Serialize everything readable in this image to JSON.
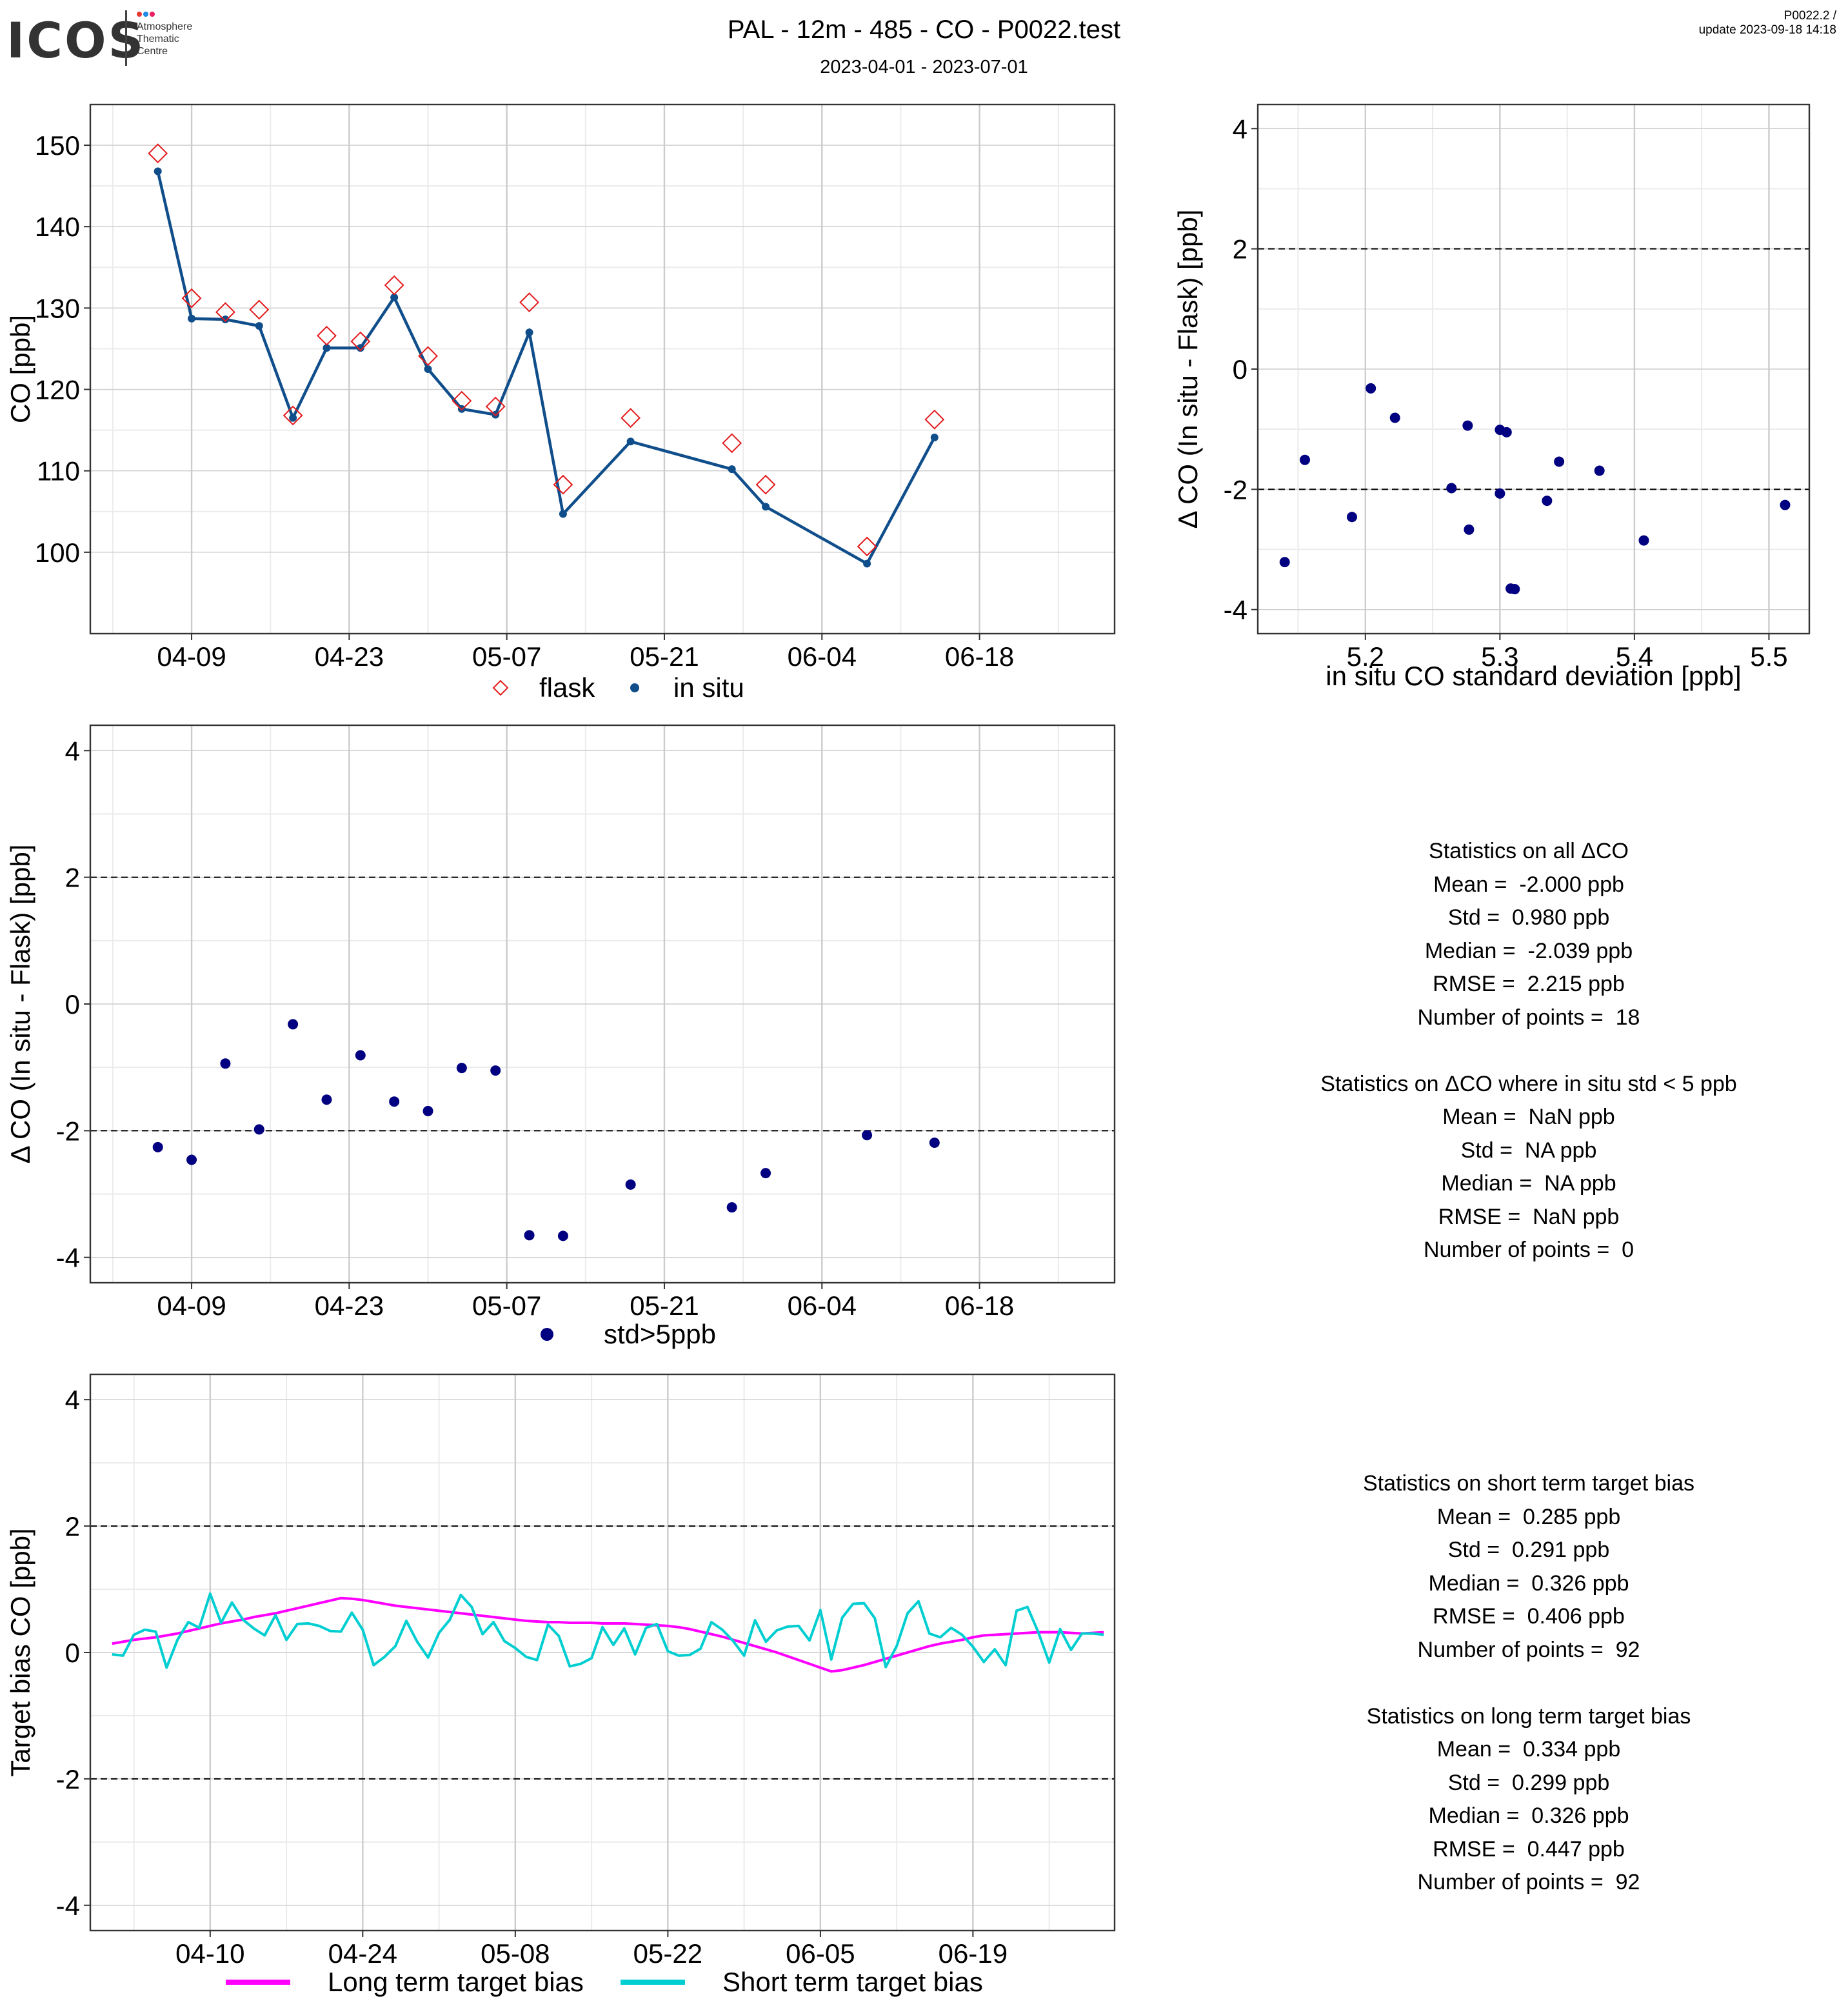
{
  "header": {
    "logo_text": "ICOS",
    "logo_subtitle": "Atmosphere\nThematic\nCentre",
    "title": "PAL - 12m - 485 - CO - P0022.test",
    "subtitle": "2023-04-01 - 2023-07-01",
    "version": "P0022.2 /",
    "update": "update  2023-09-18 14:18"
  },
  "chart_data": [
    {
      "type": "line",
      "ylabel": "CO [ppb]",
      "ylim": [
        90,
        155
      ],
      "yticks": [
        100,
        110,
        120,
        130,
        140,
        150
      ],
      "xlim": [
        "2023-03-31",
        "2023-06-30"
      ],
      "xtick_dates": [
        "2023-04-09",
        "2023-04-23",
        "2023-05-07",
        "2023-05-21",
        "2023-06-04",
        "2023-06-18"
      ],
      "xtick_labels": [
        "04-09",
        "04-23",
        "05-07",
        "05-21",
        "06-04",
        "06-18"
      ],
      "grid": true,
      "legend_position": "bottom",
      "series": [
        {
          "name": "flask",
          "marker": "diamond-open",
          "color": "#e31a1c",
          "x": [
            "2023-04-06",
            "2023-04-09",
            "2023-04-12",
            "2023-04-15",
            "2023-04-18",
            "2023-04-21",
            "2023-04-24",
            "2023-04-27",
            "2023-04-30",
            "2023-05-03",
            "2023-05-06",
            "2023-05-09",
            "2023-05-12",
            "2023-05-18",
            "2023-05-27",
            "2023-05-30",
            "2023-06-08",
            "2023-06-14"
          ],
          "y": [
            149.0,
            131.2,
            129.5,
            129.8,
            116.8,
            126.6,
            125.9,
            132.8,
            124.1,
            118.6,
            117.9,
            130.7,
            108.3,
            116.5,
            113.4,
            108.3,
            100.7,
            116.3
          ]
        },
        {
          "name": "in situ",
          "marker": "dot-line",
          "color": "#104e8b",
          "x": [
            "2023-04-06",
            "2023-04-09",
            "2023-04-12",
            "2023-04-15",
            "2023-04-18",
            "2023-04-21",
            "2023-04-24",
            "2023-04-27",
            "2023-04-30",
            "2023-05-03",
            "2023-05-06",
            "2023-05-09",
            "2023-05-12",
            "2023-05-18",
            "2023-05-27",
            "2023-05-30",
            "2023-06-08",
            "2023-06-14"
          ],
          "y": [
            146.8,
            128.7,
            128.6,
            127.8,
            116.5,
            125.1,
            125.1,
            131.3,
            122.5,
            117.6,
            116.9,
            127.0,
            104.7,
            113.6,
            110.2,
            105.6,
            98.6,
            114.1
          ]
        }
      ]
    },
    {
      "type": "scatter",
      "xlabel": "in situ CO standard deviation [ppb]",
      "ylabel": "Δ CO (In situ - Flask) [ppb]",
      "xlim": [
        5.12,
        5.53
      ],
      "ylim": [
        -4.4,
        4.4
      ],
      "xticks": [
        5.2,
        5.3,
        5.4,
        5.5
      ],
      "yticks": [
        -4,
        -2,
        0,
        2,
        4
      ],
      "hlines": [
        -2,
        2
      ],
      "grid": true,
      "series": [
        {
          "color": "#000080",
          "x": [
            5.14,
            5.155,
            5.19,
            5.204,
            5.222,
            5.264,
            5.277,
            5.276,
            5.3,
            5.3,
            5.305,
            5.308,
            5.311,
            5.335,
            5.344,
            5.374,
            5.407,
            5.512
          ],
          "y": [
            -3.21,
            -1.51,
            -2.46,
            -0.32,
            -0.81,
            -1.98,
            -2.67,
            -0.94,
            -1.01,
            -2.07,
            -1.05,
            -3.65,
            -3.66,
            -2.19,
            -1.54,
            -1.69,
            -2.85,
            -2.26
          ]
        }
      ]
    },
    {
      "type": "scatter",
      "ylabel": "Δ CO (In situ - Flask) [ppb]",
      "xlim": [
        "2023-03-31",
        "2023-06-30"
      ],
      "ylim": [
        -4.4,
        4.4
      ],
      "yticks": [
        -4,
        -2,
        0,
        2,
        4
      ],
      "xtick_dates": [
        "2023-04-09",
        "2023-04-23",
        "2023-05-07",
        "2023-05-21",
        "2023-06-04",
        "2023-06-18"
      ],
      "xtick_labels": [
        "04-09",
        "04-23",
        "05-07",
        "05-21",
        "06-04",
        "06-18"
      ],
      "hlines": [
        -2,
        2
      ],
      "grid": true,
      "legend_position": "bottom",
      "series": [
        {
          "name": "std>5ppb",
          "color": "#000080",
          "x": [
            "2023-04-06",
            "2023-04-09",
            "2023-04-12",
            "2023-04-15",
            "2023-04-18",
            "2023-04-21",
            "2023-04-24",
            "2023-04-27",
            "2023-04-30",
            "2023-05-03",
            "2023-05-06",
            "2023-05-09",
            "2023-05-12",
            "2023-05-18",
            "2023-05-27",
            "2023-05-30",
            "2023-06-08",
            "2023-06-14"
          ],
          "y": [
            -2.26,
            -2.46,
            -0.94,
            -1.98,
            -0.32,
            -1.51,
            -0.81,
            -1.54,
            -1.69,
            -1.01,
            -1.05,
            -3.65,
            -3.66,
            -2.85,
            -3.21,
            -2.67,
            -2.07,
            -2.19
          ]
        }
      ]
    },
    {
      "type": "line",
      "ylabel": "Target bias CO [ppb]",
      "xlim": [
        "2023-03-30",
        "2023-07-02"
      ],
      "ylim": [
        -4.4,
        4.4
      ],
      "yticks": [
        -4,
        -2,
        0,
        2,
        4
      ],
      "xtick_dates": [
        "2023-04-10",
        "2023-04-24",
        "2023-05-08",
        "2023-05-22",
        "2023-06-05",
        "2023-06-19"
      ],
      "xtick_labels": [
        "04-10",
        "04-24",
        "05-08",
        "05-22",
        "06-05",
        "06-19"
      ],
      "hlines": [
        -2,
        2
      ],
      "grid": true,
      "legend_position": "bottom",
      "x_start": "2023-04-01",
      "x_step_days": 1,
      "series": [
        {
          "name": "Long term target bias",
          "color": "#ff00ff",
          "y": [
            0.14,
            0.17,
            0.2,
            0.22,
            0.24,
            0.27,
            0.3,
            0.34,
            0.38,
            0.42,
            0.46,
            0.49,
            0.52,
            0.56,
            0.59,
            0.62,
            0.66,
            0.7,
            0.74,
            0.78,
            0.82,
            0.86,
            0.85,
            0.83,
            0.8,
            0.77,
            0.74,
            0.72,
            0.7,
            0.68,
            0.66,
            0.64,
            0.62,
            0.6,
            0.58,
            0.56,
            0.54,
            0.52,
            0.5,
            0.49,
            0.48,
            0.48,
            0.47,
            0.47,
            0.47,
            0.46,
            0.46,
            0.46,
            0.45,
            0.44,
            0.43,
            0.42,
            0.4,
            0.37,
            0.33,
            0.29,
            0.25,
            0.2,
            0.15,
            0.1,
            0.05,
            0.0,
            -0.06,
            -0.12,
            -0.18,
            -0.24,
            -0.3,
            -0.28,
            -0.24,
            -0.2,
            -0.15,
            -0.1,
            -0.05,
            0.0,
            0.05,
            0.1,
            0.14,
            0.17,
            0.2,
            0.24,
            0.27,
            0.28,
            0.29,
            0.3,
            0.31,
            0.32,
            0.32,
            0.32,
            0.31,
            0.3,
            0.31,
            0.32
          ]
        },
        {
          "name": "Short term target bias",
          "color": "#00ced1",
          "y": [
            -0.03,
            -0.05,
            0.28,
            0.36,
            0.33,
            -0.24,
            0.2,
            0.48,
            0.39,
            0.93,
            0.47,
            0.79,
            0.52,
            0.38,
            0.27,
            0.59,
            0.2,
            0.45,
            0.46,
            0.42,
            0.34,
            0.33,
            0.63,
            0.36,
            -0.2,
            -0.07,
            0.1,
            0.5,
            0.17,
            -0.08,
            0.31,
            0.52,
            0.91,
            0.72,
            0.29,
            0.48,
            0.18,
            0.07,
            -0.07,
            -0.12,
            0.44,
            0.26,
            -0.22,
            -0.18,
            -0.09,
            0.4,
            0.12,
            0.38,
            -0.03,
            0.39,
            0.45,
            0.02,
            -0.05,
            -0.04,
            0.06,
            0.48,
            0.36,
            0.18,
            -0.05,
            0.51,
            0.17,
            0.35,
            0.41,
            0.42,
            0.19,
            0.67,
            -0.11,
            0.55,
            0.77,
            0.78,
            0.54,
            -0.23,
            0.1,
            0.62,
            0.81,
            0.3,
            0.24,
            0.39,
            0.28,
            0.09,
            -0.15,
            0.05,
            -0.2,
            0.66,
            0.72,
            0.32,
            -0.16,
            0.37,
            0.04,
            0.3,
            0.3,
            0.28
          ]
        }
      ]
    }
  ],
  "stats_delta": {
    "lines": [
      "Statistics on all ΔCO",
      "Mean =  -2.000 ppb",
      "Std =  0.980 ppb",
      "Median =  -2.039 ppb",
      "RMSE =  2.215 ppb",
      "Number of points =  18",
      "",
      "Statistics on ΔCO where in situ std < 5 ppb",
      "Mean =  NaN ppb",
      "Std =  NA ppb",
      "Median =  NA ppb",
      "RMSE =  NaN ppb",
      "Number of points =  0"
    ]
  },
  "stats_bias": {
    "lines": [
      "Statistics on short term target bias",
      "Mean =  0.285 ppb",
      "Std =  0.291 ppb",
      "Median =  0.326 ppb",
      "RMSE =  0.406 ppb",
      "Number of points =  92",
      "",
      "Statistics on long term target bias",
      "Mean =  0.334 ppb",
      "Std =  0.299 ppb",
      "Median =  0.326 ppb",
      "RMSE =  0.447 ppb",
      "Number of points =  92"
    ]
  },
  "colors": {
    "panel_border": "#333333",
    "grid_major": "#cccccc",
    "grid_minor": "#ebebeb"
  }
}
